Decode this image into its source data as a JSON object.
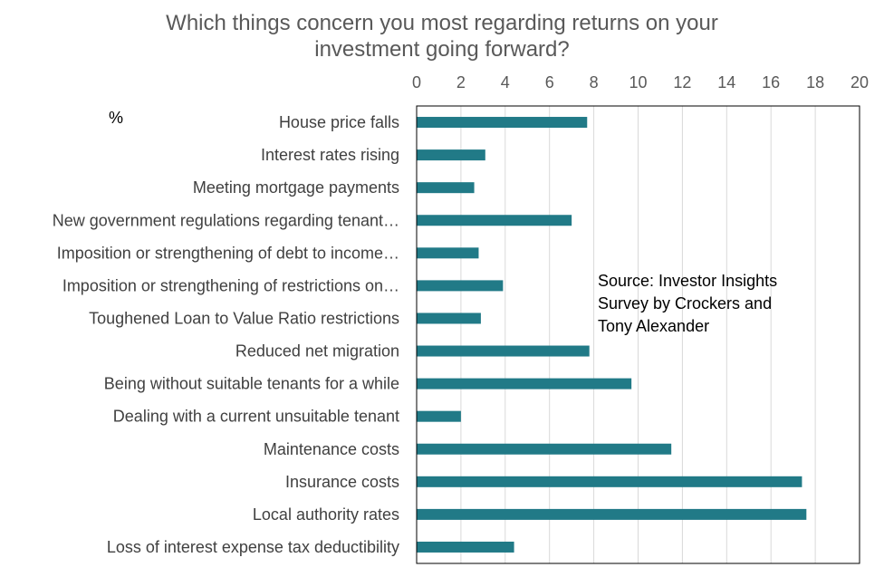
{
  "chart_data": {
    "type": "bar",
    "orientation": "horizontal",
    "title": "Which things concern you most regarding returns on your investment going forward?",
    "title_lines": [
      "Which things concern you most regarding returns on your",
      "investment going forward?"
    ],
    "unit_label": "%",
    "annotation_lines": [
      "Source: Investor Insights",
      "Survey by Crockers and",
      "Tony Alexander"
    ],
    "categories": [
      "House price falls",
      "Interest rates rising",
      "Meeting mortgage payments",
      "New government regulations regarding tenant…",
      "Imposition or strengthening of debt to income…",
      "Imposition or strengthening of restrictions on…",
      "Toughened Loan to Value Ratio restrictions",
      "Reduced net migration",
      "Being without suitable tenants for a while",
      "Dealing with a current unsuitable tenant",
      "Maintenance costs",
      "Insurance costs",
      "Local authority rates",
      "Loss of interest expense tax deductibility"
    ],
    "values": [
      7.7,
      3.1,
      2.6,
      7.0,
      2.8,
      3.9,
      2.9,
      7.8,
      9.7,
      2.0,
      11.5,
      17.4,
      17.6,
      4.4
    ],
    "xlim": [
      0,
      20
    ],
    "x_ticks": [
      0,
      2,
      4,
      6,
      8,
      10,
      12,
      14,
      16,
      18,
      20
    ],
    "x_axis_position": "top",
    "grid": true,
    "legend": "none",
    "colors": {
      "bar": "#217a87",
      "grid": "#d9d9d9",
      "border": "#000000"
    }
  }
}
